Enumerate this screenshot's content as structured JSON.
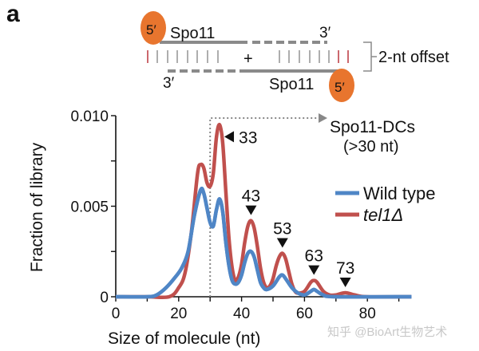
{
  "panel_label": "a",
  "diagram": {
    "top_protein": "Spo11",
    "bottom_protein": "Spo11",
    "five_prime": "5′",
    "three_prime": "3′",
    "plus": "+",
    "offset_label": "2-nt offset",
    "cap_color": "#E8752E",
    "strand_color": "#8a8a8a",
    "offset_tick_color": "#c0424a"
  },
  "chart_data": {
    "type": "line",
    "xlabel": "Size of molecule (nt)",
    "ylabel": "Fraction of library",
    "xlim": [
      0,
      94
    ],
    "ylim": [
      0,
      0.01
    ],
    "x_ticks": [
      0,
      20,
      40,
      60,
      80
    ],
    "x_tick_labels": [
      "0",
      "20",
      "40",
      "60",
      "80"
    ],
    "y_ticks": [
      0,
      0.005,
      0.01
    ],
    "y_tick_labels": [
      "0",
      "0.005",
      "0.010"
    ],
    "grid": false,
    "legend_position": "right",
    "threshold": {
      "x": 30,
      "label_line1": "Spo11-DCs",
      "label_line2": "(>30 nt)"
    },
    "peak_labels": [
      {
        "x": 33,
        "label": "33",
        "direction": "left"
      },
      {
        "x": 43,
        "label": "43",
        "direction": "down"
      },
      {
        "x": 53,
        "label": "53",
        "direction": "down"
      },
      {
        "x": 63,
        "label": "63",
        "direction": "down"
      },
      {
        "x": 73,
        "label": "73",
        "direction": "down"
      }
    ],
    "series": [
      {
        "name": "Wild type",
        "italic": false,
        "color": "#4F86C6",
        "x": [
          0,
          10,
          13,
          16,
          19,
          21,
          23,
          25,
          27,
          28,
          29,
          30,
          31,
          32,
          33,
          34,
          35,
          36,
          37,
          38,
          39,
          40,
          41,
          42,
          43,
          44,
          45,
          46,
          47,
          48,
          50,
          52,
          53,
          54,
          56,
          58,
          60,
          62,
          63,
          64,
          66,
          70,
          94
        ],
        "y": [
          0,
          0,
          0.0001,
          0.0005,
          0.0011,
          0.0016,
          0.0025,
          0.0045,
          0.0059,
          0.0057,
          0.0049,
          0.0041,
          0.0039,
          0.0048,
          0.0054,
          0.0047,
          0.003,
          0.0017,
          0.0009,
          0.0007,
          0.0008,
          0.0012,
          0.0019,
          0.0024,
          0.0025,
          0.0022,
          0.0015,
          0.0008,
          0.0005,
          0.0004,
          0.0006,
          0.0011,
          0.0012,
          0.001,
          0.0005,
          0.0002,
          0.0001,
          0.0003,
          0.0004,
          0.0003,
          0.0001,
          0,
          0
        ]
      },
      {
        "name": "tel1Δ",
        "italic": true,
        "color": "#C0504D",
        "x": [
          0,
          10,
          17,
          20,
          22,
          24,
          26,
          27,
          28,
          29,
          30,
          31,
          32,
          33,
          34,
          35,
          36,
          37,
          38,
          39,
          40,
          41,
          42,
          43,
          44,
          45,
          46,
          47,
          48,
          49,
          50,
          51,
          52,
          53,
          54,
          55,
          56,
          57,
          58,
          60,
          62,
          63,
          64,
          66,
          68,
          70,
          73,
          76,
          80,
          94
        ],
        "y": [
          0,
          0,
          0,
          0.0005,
          0.0013,
          0.0035,
          0.0068,
          0.0073,
          0.0071,
          0.0063,
          0.0061,
          0.0068,
          0.0088,
          0.0095,
          0.0085,
          0.0058,
          0.0032,
          0.0016,
          0.0009,
          0.0011,
          0.0018,
          0.003,
          0.0039,
          0.0042,
          0.0038,
          0.0028,
          0.0016,
          0.0008,
          0.0005,
          0.0006,
          0.001,
          0.0017,
          0.0022,
          0.0024,
          0.0021,
          0.0014,
          0.0007,
          0.0003,
          0.0002,
          0.0003,
          0.0008,
          0.0009,
          0.0008,
          0.0003,
          0.0001,
          0.0001,
          0.00022,
          0.0001,
          0,
          0
        ]
      }
    ]
  },
  "watermark": "知乎 @BioArt生物艺术"
}
